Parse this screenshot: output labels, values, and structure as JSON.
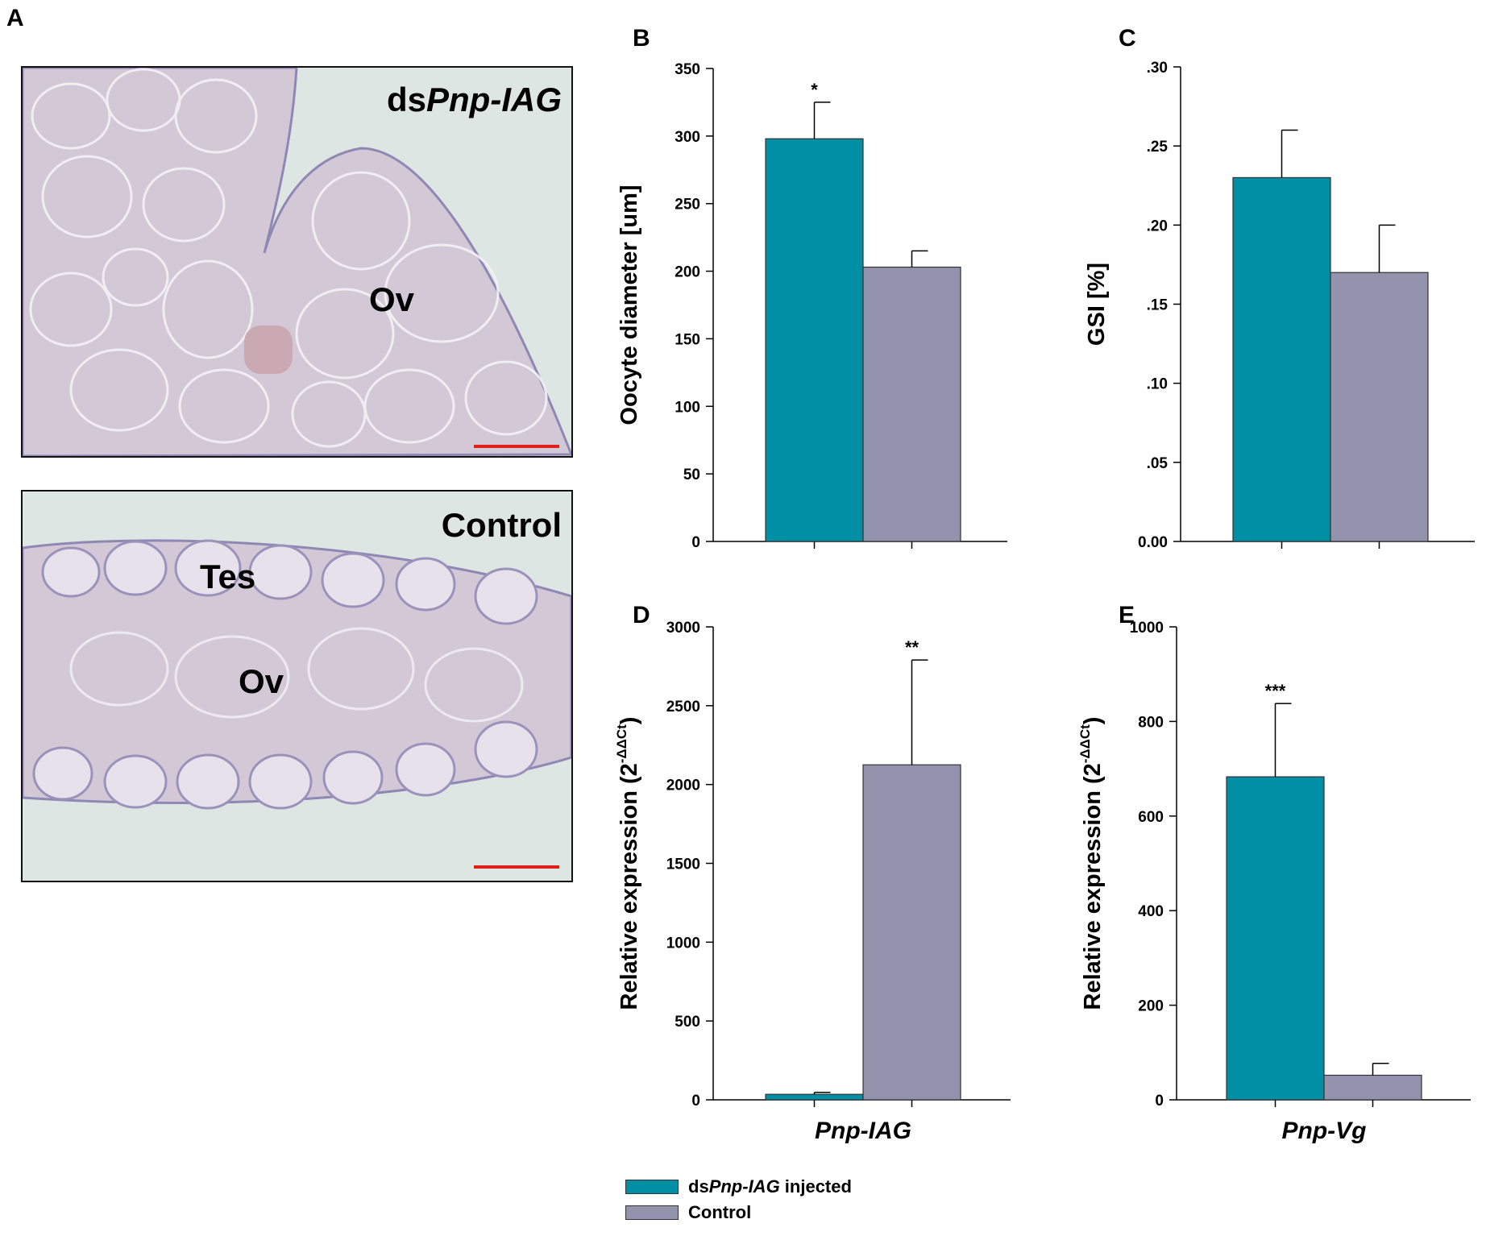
{
  "colors": {
    "treatment": "#008FA5",
    "control": "#9393AE"
  },
  "panel_a": {
    "letter": "A",
    "images": [
      {
        "id": "ds",
        "label_prefix": "ds",
        "label_italic": "Pnp-IAG",
        "regions": [
          "Ov"
        ]
      },
      {
        "id": "control",
        "label": "Control",
        "regions": [
          "Tes",
          "Ov"
        ]
      }
    ]
  },
  "legend": {
    "treatment_prefix": "ds",
    "treatment_italic": "Pnp-IAG",
    "treatment_suffix": " injected",
    "control": "Control"
  },
  "chart_data": [
    {
      "id": "B",
      "letter": "B",
      "type": "bar",
      "ylabel": "Oocyte diameter [um]",
      "ylabel_sup": "",
      "xlabel": "",
      "ylim": [
        0,
        350
      ],
      "yticks": [
        0,
        50,
        100,
        150,
        200,
        250,
        300,
        350
      ],
      "ytick_labels": [
        "0",
        "50",
        "100",
        "150",
        "200",
        "250",
        "300",
        "350"
      ],
      "series": [
        {
          "name": "dsPnp-IAG injected",
          "value": 298,
          "error": 27,
          "sig": "*"
        },
        {
          "name": "Control",
          "value": 203,
          "error": 12,
          "sig": ""
        }
      ]
    },
    {
      "id": "C",
      "letter": "C",
      "type": "bar",
      "ylabel": "GSI [%]",
      "ylabel_sup": "",
      "xlabel": "",
      "ylim": [
        0,
        0.3
      ],
      "yticks": [
        0,
        0.05,
        0.1,
        0.15,
        0.2,
        0.25,
        0.3
      ],
      "ytick_labels": [
        "0.00",
        ".05",
        ".10",
        ".15",
        ".20",
        ".25",
        ".30"
      ],
      "series": [
        {
          "name": "dsPnp-IAG injected",
          "value": 0.23,
          "error": 0.03,
          "sig": ""
        },
        {
          "name": "Control",
          "value": 0.17,
          "error": 0.03,
          "sig": ""
        }
      ]
    },
    {
      "id": "D",
      "letter": "D",
      "type": "bar",
      "ylabel": "Relative expression (2",
      "ylabel_sup": "-ΔΔCt",
      "xlabel": "Pnp-IAG",
      "ylim": [
        0,
        3000
      ],
      "yticks": [
        0,
        500,
        1000,
        1500,
        2000,
        2500,
        3000
      ],
      "ytick_labels": [
        "0",
        "500",
        "1000",
        "1500",
        "2000",
        "2500",
        "3000"
      ],
      "series": [
        {
          "name": "dsPnp-IAG injected",
          "value": 35,
          "error": 12,
          "sig": ""
        },
        {
          "name": "Control",
          "value": 2125,
          "error": 665,
          "sig": "**"
        }
      ]
    },
    {
      "id": "E",
      "letter": "E",
      "type": "bar",
      "ylabel": "Relative expression (2",
      "ylabel_sup": "-ΔΔCt",
      "xlabel": "Pnp-Vg",
      "ylim": [
        0,
        1000
      ],
      "yticks": [
        0,
        200,
        400,
        600,
        800,
        1000
      ],
      "ytick_labels": [
        "0",
        "200",
        "400",
        "600",
        "800",
        "1000"
      ],
      "series": [
        {
          "name": "dsPnp-IAG injected",
          "value": 683,
          "error": 155,
          "sig": "***"
        },
        {
          "name": "Control",
          "value": 52,
          "error": 25,
          "sig": ""
        }
      ]
    }
  ]
}
